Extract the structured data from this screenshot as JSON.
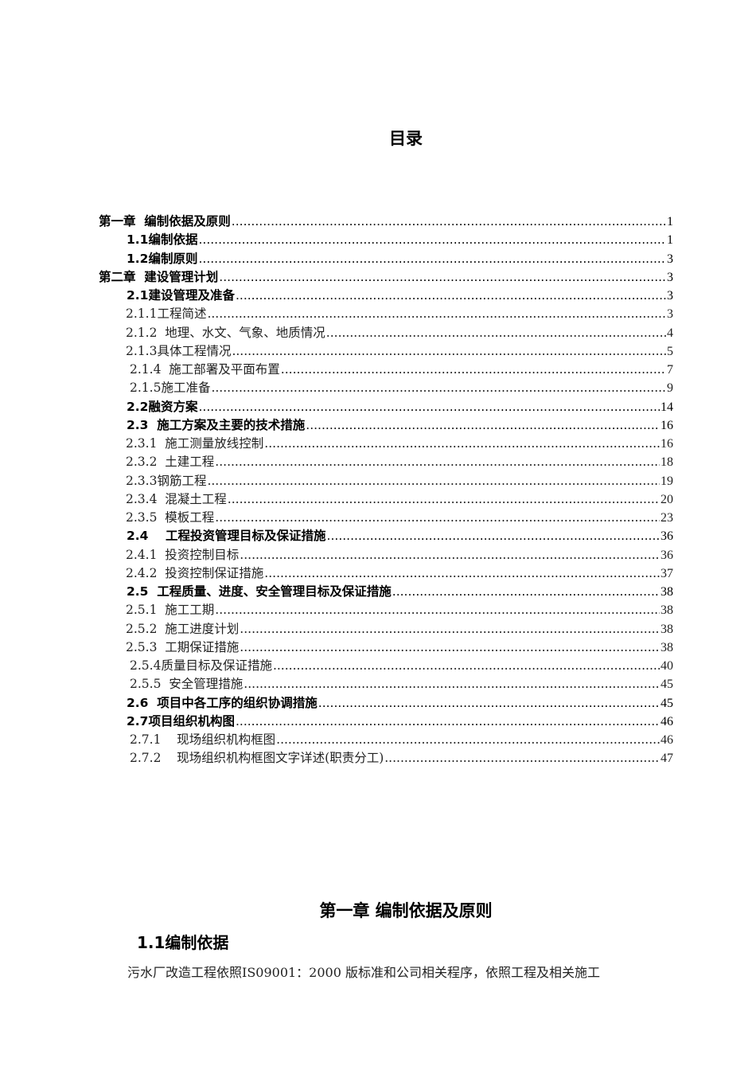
{
  "toc_title": "目录",
  "toc": [
    {
      "level": "l1",
      "label": "第一章  编制依据及原则",
      "page": "1"
    },
    {
      "level": "l2",
      "label": "1.1编制依据",
      "page": "1"
    },
    {
      "level": "l2",
      "label": "1.2编制原则",
      "page": "3"
    },
    {
      "level": "l1",
      "label": "第二章  建设管理计划",
      "page": "3"
    },
    {
      "level": "l2",
      "label": "2.1建设管理及准备",
      "page": "3"
    },
    {
      "level": "l3",
      "label": "2.1.1工程简述",
      "page": "3"
    },
    {
      "level": "l3",
      "label": "2.1.2  地理、水文、气象、地质情况",
      "page": "4"
    },
    {
      "level": "l3",
      "label": "2.1.3具体工程情况",
      "page": "5"
    },
    {
      "level": "l3b",
      "label": "2.1.4  施工部署及平面布置",
      "page": "7"
    },
    {
      "level": "l3b",
      "label": "2.1.5施工准备",
      "page": "9"
    },
    {
      "level": "l2",
      "label": "2.2融资方案",
      "page": "14"
    },
    {
      "level": "l2",
      "label": "2.3  施工方案及主要的技术措施",
      "page": "16"
    },
    {
      "level": "l3",
      "label": "2.3.1  施工测量放线控制",
      "page": "16"
    },
    {
      "level": "l3",
      "label": "2.3.2  土建工程",
      "page": "18"
    },
    {
      "level": "l3",
      "label": "2.3.3钢筋工程",
      "page": "19"
    },
    {
      "level": "l3",
      "label": "2.3.4  混凝土工程",
      "page": "20"
    },
    {
      "level": "l3",
      "label": "2.3.5  模板工程",
      "page": "23"
    },
    {
      "level": "l2",
      "label": "2.4    工程投资管理目标及保证措施",
      "page": "36"
    },
    {
      "level": "l3",
      "label": "2.4.1  投资控制目标",
      "page": "36"
    },
    {
      "level": "l3",
      "label": "2.4.2  投资控制保证措施",
      "page": "37"
    },
    {
      "level": "l2",
      "label": "2.5  工程质量、进度、安全管理目标及保证措施",
      "page": "38"
    },
    {
      "level": "l3",
      "label": "2.5.1  施工工期",
      "page": "38"
    },
    {
      "level": "l3",
      "label": "2.5.2  施工进度计划",
      "page": "38"
    },
    {
      "level": "l3",
      "label": "2.5.3  工期保证措施",
      "page": "38"
    },
    {
      "level": "l3b",
      "label": "2.5.4质量目标及保证措施",
      "page": "40"
    },
    {
      "level": "l3b",
      "label": "2.5.5  安全管理措施",
      "page": "45"
    },
    {
      "level": "l2",
      "label": "2.6  项目中各工序的组织协调措施",
      "page": "45"
    },
    {
      "level": "l2",
      "label": "2.7项目组织机构图",
      "page": "46"
    },
    {
      "level": "l3b",
      "label": "2.7.1    现场组织机构框图",
      "page": "46"
    },
    {
      "level": "l3b",
      "label": "2.7.2    现场组织机构框图文字详述(职责分工)",
      "page": "47"
    }
  ],
  "chapter_title": "第一章  编制依据及原则",
  "section_title": "1.1编制依据",
  "paragraph": "污水厂改造工程依照IS09001：2000 版标准和公司相关程序，依照工程及相关施工"
}
